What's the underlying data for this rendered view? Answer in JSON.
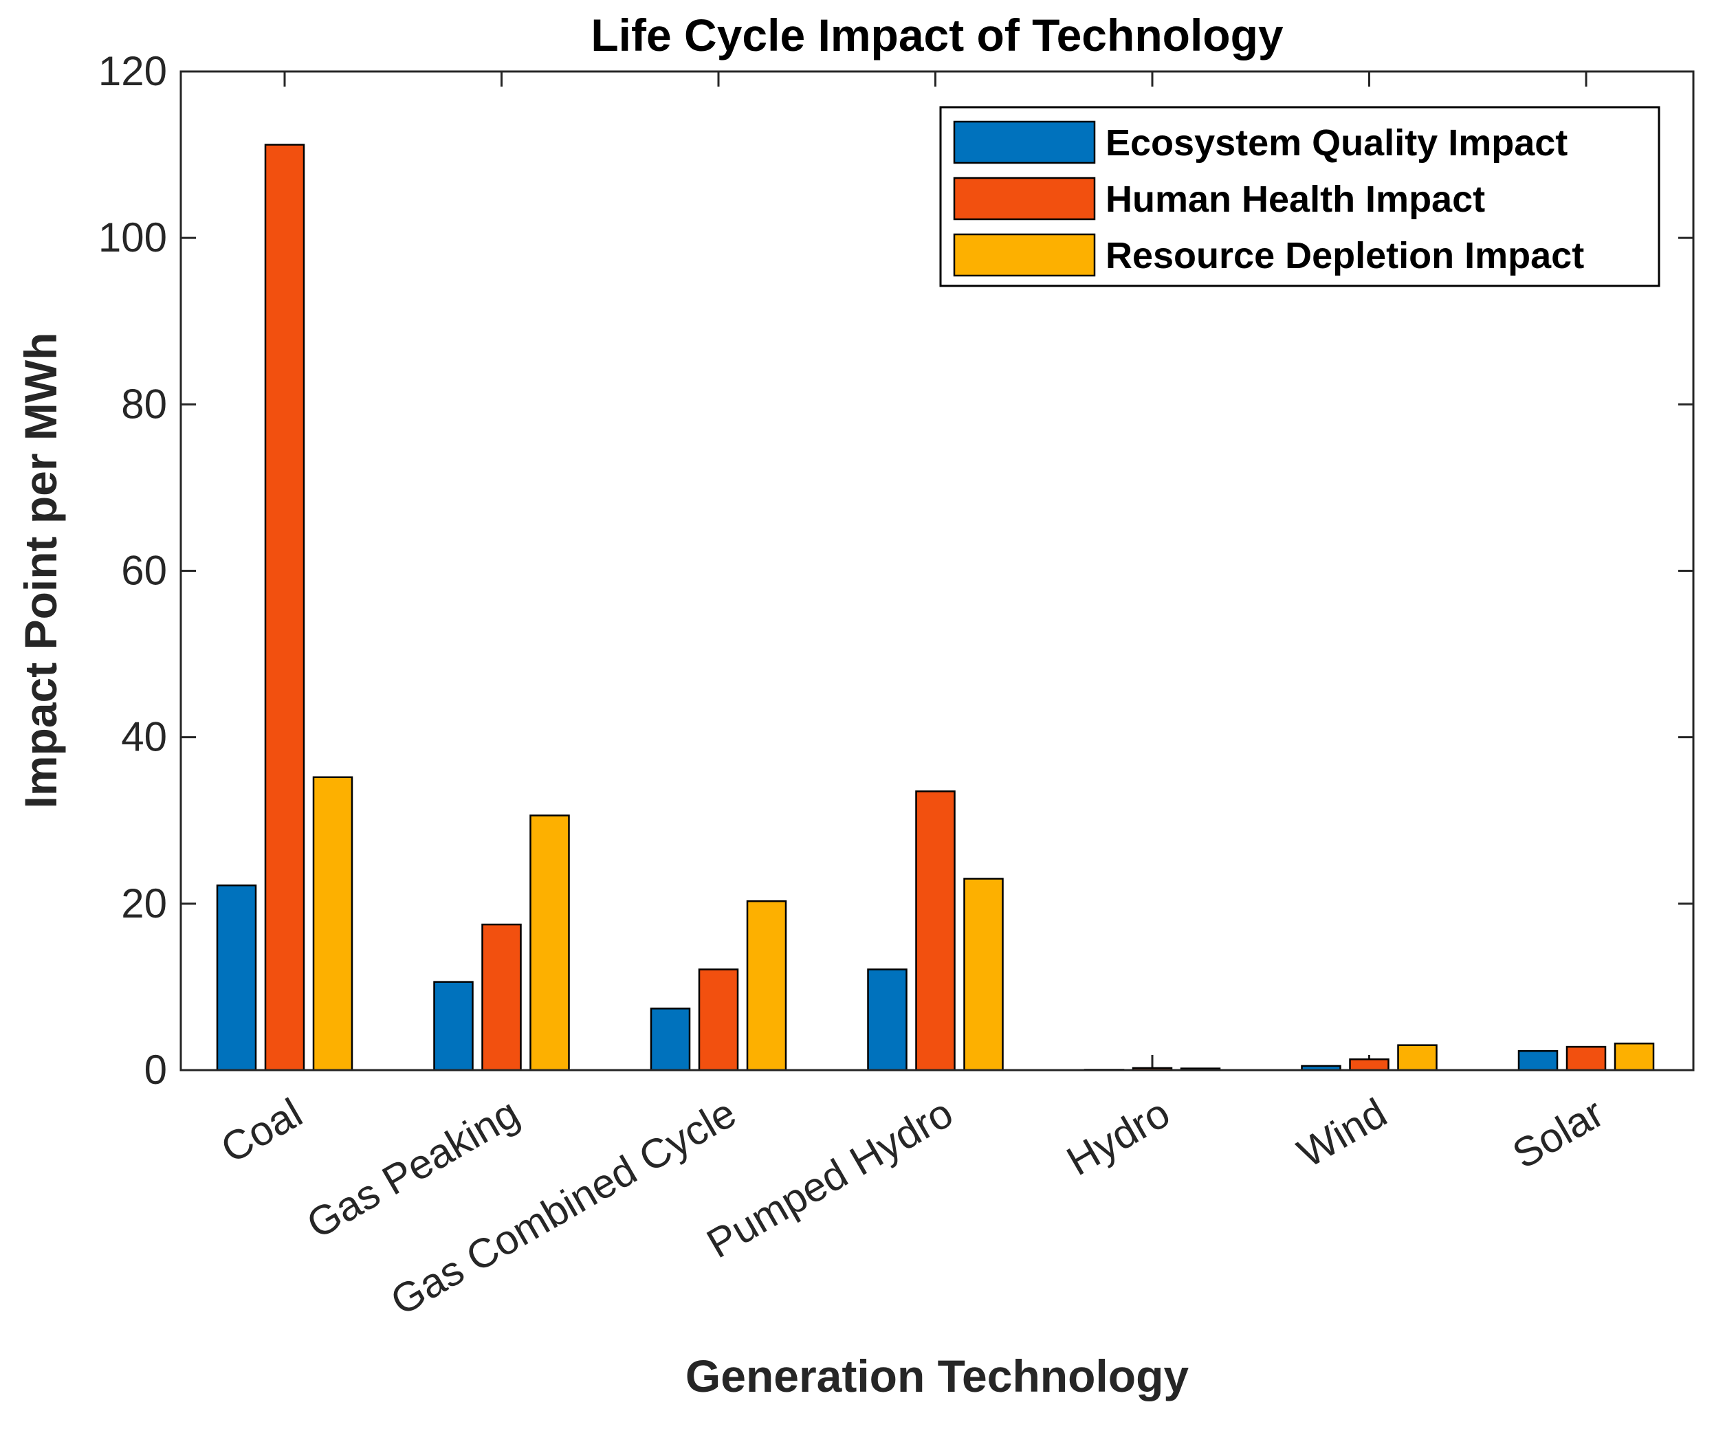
{
  "chart_data": {
    "type": "bar",
    "title": "Life Cycle Impact of Technology",
    "xlabel": "Generation Technology",
    "ylabel": "Impact Point per MWh",
    "categories": [
      "Coal",
      "Gas Peaking",
      "Gas Combined Cycle",
      "Pumped Hydro",
      "Hydro",
      "Wind",
      "Solar"
    ],
    "series": [
      {
        "name": "Ecosystem Quality Impact",
        "color": "#0072BD",
        "values": [
          22.2,
          10.6,
          7.4,
          12.1,
          0.05,
          0.5,
          2.3
        ]
      },
      {
        "name": "Human Health Impact",
        "color": "#F2500F",
        "values": [
          111.2,
          17.5,
          12.1,
          33.5,
          0.25,
          1.3,
          2.8
        ]
      },
      {
        "name": "Resource Depletion Impact",
        "color": "#FDB000",
        "values": [
          35.2,
          30.6,
          20.3,
          23.0,
          0.2,
          3.0,
          3.2
        ]
      }
    ],
    "ylim": [
      0,
      120
    ],
    "yticks": [
      0,
      20,
      40,
      60,
      80,
      100,
      120
    ],
    "legend_position": "top-right",
    "grid": false
  }
}
